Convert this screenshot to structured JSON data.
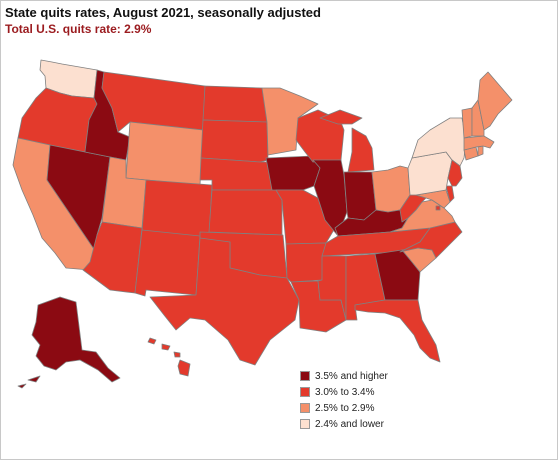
{
  "title": "State quits rates, August 2021, seasonally adjusted",
  "subtitle": "Total U.S. quits rate: 2.9%",
  "colors": {
    "subtitle": "#9b1b1f",
    "c1": "#8b0a12",
    "c2": "#e33a2c",
    "c3": "#f4906a",
    "c4": "#fce0d0"
  },
  "legend": [
    {
      "label": "3.5% and higher",
      "color_key": "c1"
    },
    {
      "label": "3.0% to 3.4%",
      "color_key": "c2"
    },
    {
      "label": "2.5% to 2.9%",
      "color_key": "c3"
    },
    {
      "label": "2.4% and lower",
      "color_key": "c4"
    }
  ],
  "chart_data": {
    "type": "choropleth",
    "title": "State quits rates, August 2021, seasonally adjusted",
    "subtitle": "Total U.S. quits rate: 2.9%",
    "bins": [
      "3.5% and higher",
      "3.0% to 3.4%",
      "2.5% to 2.9%",
      "2.4% and lower"
    ],
    "states": {
      "WA": "2.4% and lower",
      "OR": "3.0% to 3.4%",
      "CA": "2.5% to 2.9%",
      "NV": "3.5% and higher",
      "ID": "3.5% and higher",
      "MT": "3.0% to 3.4%",
      "WY": "2.5% to 2.9%",
      "UT": "2.5% to 2.9%",
      "AZ": "3.0% to 3.4%",
      "CO": "3.0% to 3.4%",
      "NM": "3.0% to 3.4%",
      "ND": "3.0% to 3.4%",
      "SD": "3.0% to 3.4%",
      "NE": "3.0% to 3.4%",
      "KS": "3.0% to 3.4%",
      "OK": "3.0% to 3.4%",
      "TX": "3.0% to 3.4%",
      "MN": "2.5% to 2.9%",
      "IA": "3.5% and higher",
      "MO": "3.0% to 3.4%",
      "AR": "3.0% to 3.4%",
      "LA": "3.0% to 3.4%",
      "WI": "3.0% to 3.4%",
      "IL": "3.5% and higher",
      "MI": "3.0% to 3.4%",
      "IN": "3.5% and higher",
      "OH": "2.5% to 2.9%",
      "KY": "3.5% and higher",
      "TN": "3.0% to 3.4%",
      "MS": "3.0% to 3.4%",
      "AL": "3.0% to 3.4%",
      "GA": "3.5% and higher",
      "FL": "3.0% to 3.4%",
      "SC": "2.5% to 2.9%",
      "NC": "3.0% to 3.4%",
      "VA": "2.5% to 2.9%",
      "WV": "3.0% to 3.4%",
      "MD": "2.5% to 2.9%",
      "DE": "3.0% to 3.4%",
      "PA": "2.4% and lower",
      "NY": "2.4% and lower",
      "NJ": "3.0% to 3.4%",
      "CT": "2.5% to 2.9%",
      "RI": "2.5% to 2.9%",
      "MA": "2.5% to 2.9%",
      "VT": "2.5% to 2.9%",
      "NH": "2.5% to 2.9%",
      "ME": "2.5% to 2.9%",
      "AK": "3.5% and higher",
      "HI": "3.0% to 3.4%",
      "DC": "3.0% to 3.4%"
    }
  }
}
